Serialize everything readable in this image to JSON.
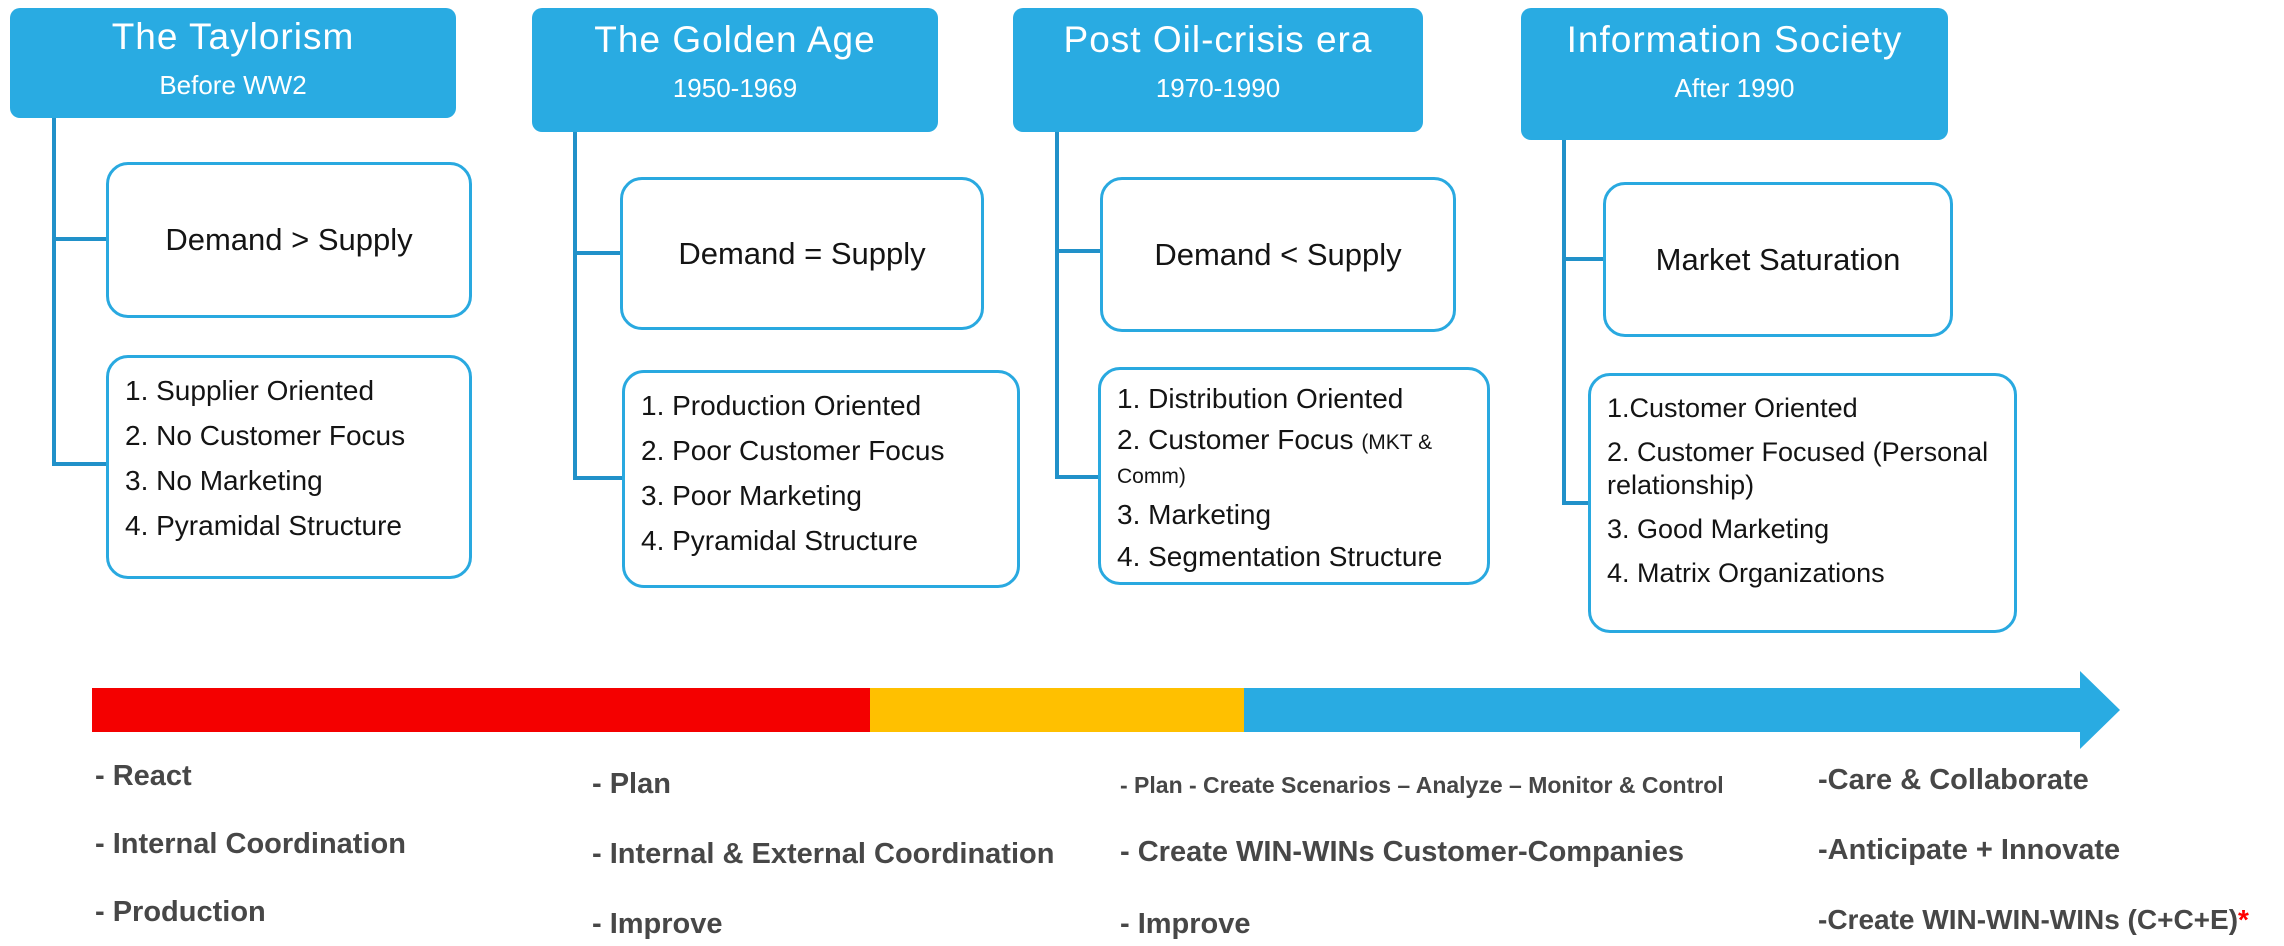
{
  "colors": {
    "header_fill": "#29abe2",
    "box_border": "#29a9e0",
    "connector": "#2191c9",
    "timeline_red": "#f40000",
    "timeline_yellow": "#ffc000",
    "timeline_blue": "#29abe2",
    "bottom_text": "#474747",
    "asterisk_red": "#ff0000"
  },
  "columns": [
    {
      "header": {
        "title": "The Taylorism",
        "subtitle": "Before WW2"
      },
      "demand_box": "Demand >  Supply",
      "list": [
        {
          "text": "1. Supplier Oriented"
        },
        {
          "text": "2. No Customer Focus"
        },
        {
          "text": "3. No Marketing"
        },
        {
          "text": "4. Pyramidal Structure"
        }
      ],
      "bottom": [
        "- React",
        "- Internal Coordination",
        "- Production"
      ]
    },
    {
      "header": {
        "title": "The Golden Age",
        "subtitle": "1950-1969"
      },
      "demand_box": "Demand = Supply",
      "list": [
        {
          "text": "1. Production Oriented"
        },
        {
          "text": "2. Poor Customer Focus"
        },
        {
          "text": "3. Poor Marketing"
        },
        {
          "text": "4. Pyramidal Structure"
        }
      ],
      "bottom": [
        "- Plan",
        "- Internal  & External Coordination",
        "- Improve"
      ]
    },
    {
      "header": {
        "title": "Post Oil-crisis era",
        "subtitle": "1970-1990"
      },
      "demand_box": "Demand < Supply",
      "list": [
        {
          "text": "1. Distribution Oriented"
        },
        {
          "text": "2. Customer Focus ",
          "small": "(MKT & Comm)"
        },
        {
          "text": "3. Marketing"
        },
        {
          "text": "4. Segmentation Structure"
        }
      ],
      "bottom": [
        "- Plan - Create Scenarios – Analyze – Monitor & Control",
        "- Create WIN-WINs Customer-Companies",
        "- Improve"
      ]
    },
    {
      "header": {
        "title": "Information Society",
        "subtitle": "After 1990"
      },
      "demand_box": "Market Saturation",
      "list": [
        {
          "text": "1.Customer Oriented"
        },
        {
          "text": "2. Customer Focused (Personal relationship)"
        },
        {
          "text": "3. Good Marketing"
        },
        {
          "text": "4. Matrix Organizations"
        }
      ],
      "bottom": [
        "-Care & Collaborate",
        "-Anticipate + Innovate",
        {
          "text": "-Create WIN-WIN-WINs (C+C+E)",
          "star": "*"
        }
      ]
    }
  ]
}
